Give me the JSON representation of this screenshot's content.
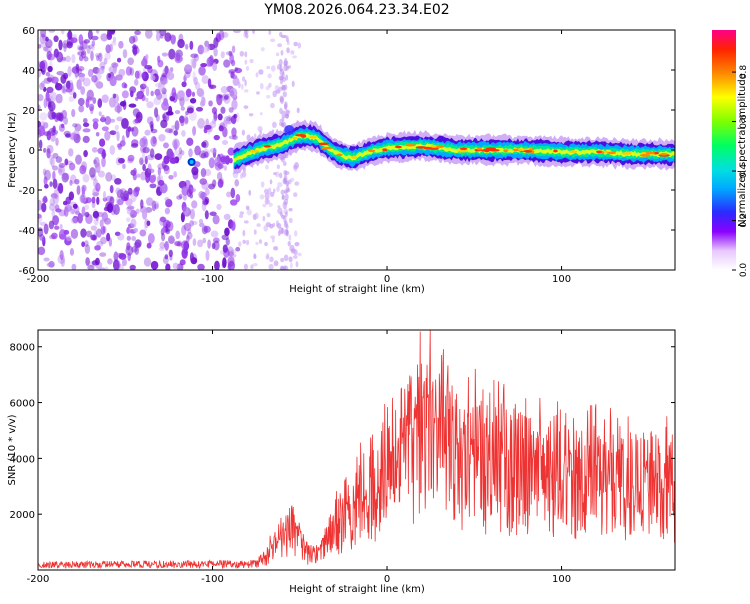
{
  "title": "YM08.2026.064.23.34.E02",
  "chart_data": [
    {
      "type": "heatmap",
      "name": "spectrogram",
      "xlabel": "Height of straight line (km)",
      "ylabel": "Frequency (Hz)",
      "xlim": [
        -200,
        165
      ],
      "ylim": [
        -60,
        60
      ],
      "x_ticks": [
        -200,
        -100,
        0,
        100
      ],
      "y_ticks": [
        60,
        40,
        20,
        0,
        -20,
        -40,
        -60
      ],
      "colorbar": {
        "label": "Normalized spectral amplitude",
        "range": [
          0,
          0.97
        ],
        "ticks": [
          0.0,
          0.2,
          0.4,
          0.6,
          0.8
        ]
      },
      "ridge": {
        "description_values": "peak frequency (Hz) vs height (km)",
        "x": [
          -88,
          -80,
          -70,
          -60,
          -55,
          -50,
          -45,
          -40,
          -35,
          -30,
          -25,
          -20,
          -10,
          0,
          20,
          40,
          60,
          80,
          100,
          120,
          140,
          165
        ],
        "y": [
          -5,
          -2,
          1,
          3,
          5,
          7,
          7,
          6,
          2,
          -1,
          -3,
          -4,
          -1,
          1,
          2,
          0,
          0,
          0,
          -1,
          -1,
          -2,
          -2
        ]
      },
      "noise_region": [
        -200,
        -85
      ]
    },
    {
      "type": "line",
      "name": "snr",
      "xlabel": "Height of straight line (km)",
      "ylabel": "SNR (10 * v/v)",
      "xlim": [
        -200,
        165
      ],
      "ylim": [
        0,
        8600
      ],
      "x_ticks": [
        -200,
        -100,
        0,
        100
      ],
      "y_ticks": [
        2000,
        4000,
        6000,
        8000
      ],
      "color": "#ee3333",
      "envelope": {
        "x": [
          -200,
          -120,
          -75,
          -70,
          -65,
          -60,
          -55,
          -50,
          -45,
          -40,
          -35,
          -30,
          -20,
          -10,
          0,
          10,
          20,
          25,
          30,
          40,
          50,
          60,
          80,
          100,
          120,
          140,
          165
        ],
        "y": [
          250,
          280,
          300,
          700,
          1400,
          1800,
          2300,
          1500,
          900,
          800,
          1400,
          2500,
          3500,
          4500,
          5500,
          6000,
          7800,
          8600,
          7200,
          6500,
          6400,
          6000,
          5500,
          5300,
          5200,
          5000,
          4800
        ]
      }
    }
  ]
}
